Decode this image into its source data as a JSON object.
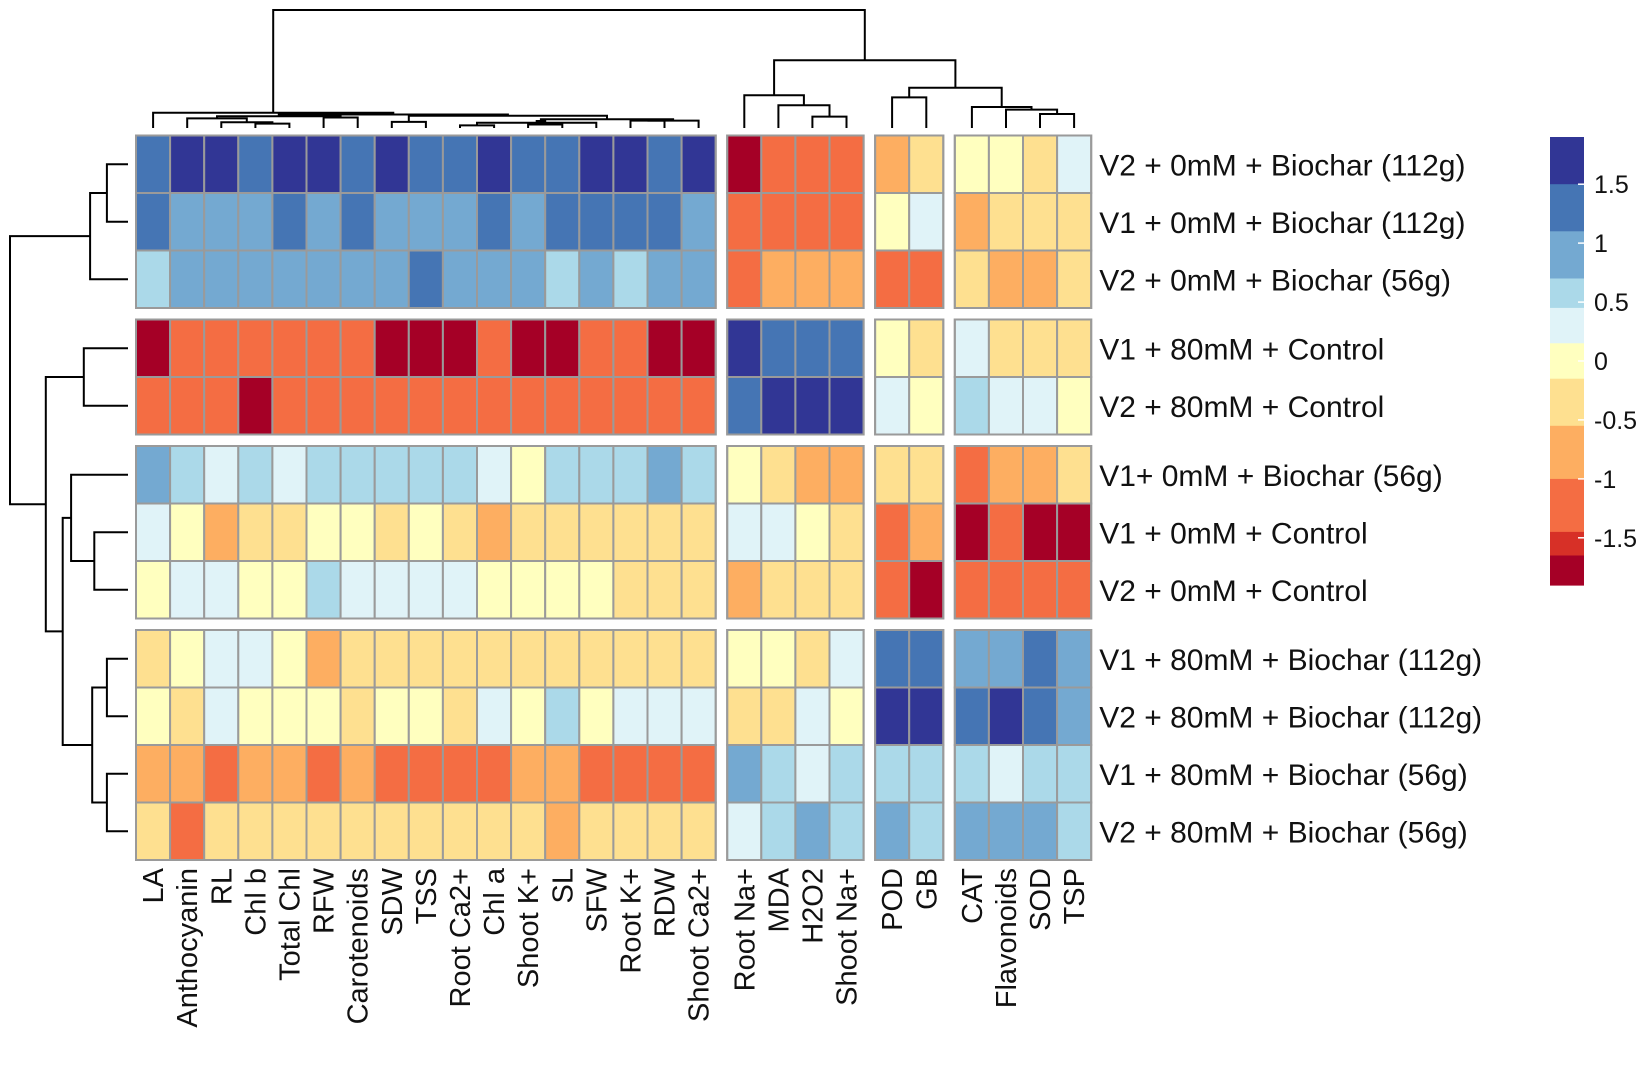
{
  "chart_data": {
    "type": "heatmap",
    "title": "",
    "columns": [
      "LA",
      "Anthocyanin",
      "RL",
      "Chl b",
      "Total Chl",
      "RFW",
      "Carotenoids",
      "SDW",
      "TSS",
      "Root Ca2+",
      "Chl a",
      "Shoot K+",
      "SL",
      "SFW",
      "Root K+",
      "RDW",
      "Shoot Ca2+",
      "Root Na+",
      "MDA",
      "H2O2",
      "Shoot Na+",
      "POD",
      "GB",
      "CAT",
      "Flavonoids",
      "SOD",
      "TSP"
    ],
    "rows": [
      "V2 + 0mM + Biochar (112g)",
      "V1 + 0mM + Biochar (112g)",
      "V2 + 0mM + Biochar (56g)",
      "V1 + 80mM + Control",
      "V2 + 80mM + Control",
      "V1+ 0mM  + Biochar (56g)",
      "V1 + 0mM  + Control",
      "V2 + 0mM + Control",
      "V1 + 80mM + Biochar (112g)",
      "V2 + 80mM + Biochar (112g)",
      "V1 + 80mM + Biochar (56g)",
      "V2 + 80mM + Biochar (56g)"
    ],
    "column_groups": [
      17,
      4,
      2,
      4
    ],
    "row_groups": [
      3,
      2,
      3,
      4
    ],
    "values": [
      [
        1.3,
        1.8,
        1.8,
        1.3,
        1.8,
        1.8,
        1.3,
        1.8,
        1.3,
        1.3,
        1.8,
        1.3,
        1.3,
        1.8,
        1.8,
        1.3,
        1.8,
        -1.8,
        -1.3,
        -1.3,
        -1.3,
        -0.8,
        -0.3,
        0.0,
        0.0,
        -0.3,
        0.3
      ],
      [
        1.3,
        0.8,
        0.8,
        0.8,
        1.3,
        0.8,
        1.3,
        0.8,
        0.8,
        0.8,
        1.3,
        0.8,
        1.3,
        1.3,
        1.3,
        1.3,
        0.8,
        -1.2,
        -1.3,
        -1.2,
        -1.2,
        0.0,
        0.3,
        -0.8,
        -0.3,
        -0.3,
        -0.3
      ],
      [
        0.6,
        0.8,
        0.8,
        0.8,
        0.8,
        0.8,
        0.8,
        0.8,
        1.3,
        0.8,
        0.8,
        0.8,
        0.6,
        0.8,
        0.6,
        0.8,
        0.8,
        -1.2,
        -0.8,
        -0.8,
        -0.8,
        -1.2,
        -1.2,
        -0.3,
        -0.8,
        -0.8,
        -0.3
      ],
      [
        -1.8,
        -1.3,
        -1.3,
        -1.3,
        -1.3,
        -1.3,
        -1.3,
        -1.8,
        -1.8,
        -1.8,
        -1.3,
        -1.8,
        -1.8,
        -1.3,
        -1.3,
        -1.8,
        -1.8,
        1.8,
        1.3,
        1.3,
        1.3,
        0.0,
        -0.3,
        0.3,
        -0.3,
        -0.3,
        -0.3
      ],
      [
        -1.3,
        -1.3,
        -1.3,
        -1.8,
        -1.3,
        -1.3,
        -1.3,
        -1.2,
        -1.2,
        -1.2,
        -1.3,
        -1.2,
        -1.3,
        -1.2,
        -1.3,
        -1.2,
        -1.2,
        1.3,
        1.8,
        1.8,
        1.8,
        0.3,
        0.0,
        0.6,
        0.3,
        0.3,
        0.0
      ],
      [
        0.9,
        0.6,
        0.3,
        0.6,
        0.3,
        0.6,
        0.6,
        0.6,
        0.6,
        0.6,
        0.3,
        0.0,
        0.6,
        0.6,
        0.6,
        0.9,
        0.6,
        0.0,
        -0.3,
        -0.8,
        -0.8,
        -0.3,
        -0.3,
        -1.2,
        -0.8,
        -0.8,
        -0.3
      ],
      [
        0.3,
        0.0,
        -0.8,
        -0.3,
        -0.3,
        0.0,
        0.0,
        -0.3,
        0.0,
        -0.3,
        -0.8,
        -0.3,
        -0.3,
        -0.3,
        -0.3,
        -0.3,
        -0.3,
        0.3,
        0.3,
        0.0,
        -0.3,
        -1.2,
        -0.8,
        -1.8,
        -1.3,
        -1.8,
        -1.8
      ],
      [
        0.0,
        0.3,
        0.3,
        0.0,
        0.0,
        0.6,
        0.3,
        0.3,
        0.3,
        0.3,
        0.0,
        0.0,
        0.0,
        0.0,
        -0.3,
        -0.3,
        -0.3,
        -0.8,
        -0.3,
        -0.3,
        -0.3,
        -1.3,
        -1.8,
        -1.2,
        -1.3,
        -1.3,
        -1.3
      ],
      [
        -0.3,
        0.0,
        0.3,
        0.3,
        0.0,
        -0.8,
        -0.3,
        -0.3,
        -0.3,
        -0.3,
        -0.3,
        -0.3,
        -0.3,
        -0.3,
        -0.3,
        -0.3,
        -0.3,
        0.0,
        0.0,
        -0.3,
        0.3,
        1.3,
        1.3,
        0.9,
        0.9,
        1.3,
        0.9
      ],
      [
        0.0,
        -0.3,
        0.3,
        0.0,
        0.0,
        0.0,
        -0.3,
        0.0,
        0.0,
        -0.3,
        0.3,
        0.0,
        0.6,
        0.0,
        0.3,
        0.3,
        0.3,
        -0.3,
        -0.3,
        0.3,
        0.0,
        1.8,
        1.8,
        1.3,
        1.8,
        1.3,
        0.9
      ],
      [
        -0.8,
        -0.8,
        -1.2,
        -0.8,
        -0.8,
        -1.2,
        -0.8,
        -1.2,
        -1.2,
        -1.2,
        -1.2,
        -0.8,
        -0.8,
        -1.2,
        -1.2,
        -1.2,
        -1.2,
        0.9,
        0.6,
        0.3,
        0.6,
        0.6,
        0.6,
        0.6,
        0.3,
        0.6,
        0.6
      ],
      [
        -0.3,
        -1.2,
        -0.3,
        -0.3,
        -0.3,
        -0.3,
        -0.3,
        -0.3,
        -0.3,
        -0.3,
        -0.3,
        -0.3,
        -0.8,
        -0.3,
        -0.3,
        -0.3,
        -0.3,
        0.3,
        0.6,
        0.9,
        0.6,
        0.9,
        0.6,
        0.9,
        0.9,
        0.9,
        0.6
      ]
    ],
    "legend": {
      "position": "right",
      "range": [
        -1.9,
        1.9
      ],
      "ticks": [
        {
          "value": 1.5,
          "label": "1.5"
        },
        {
          "value": 1.0,
          "label": "1"
        },
        {
          "value": 0.5,
          "label": "0.5"
        },
        {
          "value": 0.0,
          "label": "0"
        },
        {
          "value": -0.5,
          "label": "-0.5"
        },
        {
          "value": -1.0,
          "label": "-1"
        },
        {
          "value": -1.5,
          "label": "-1.5"
        }
      ],
      "bins": [
        {
          "min": 1.5,
          "max": 1.9,
          "color": "#313695"
        },
        {
          "min": 1.1,
          "max": 1.5,
          "color": "#4575b4"
        },
        {
          "min": 0.7,
          "max": 1.1,
          "color": "#74a9d1"
        },
        {
          "min": 0.45,
          "max": 0.7,
          "color": "#abd9e9"
        },
        {
          "min": 0.15,
          "max": 0.45,
          "color": "#e0f3f8"
        },
        {
          "min": -0.15,
          "max": 0.15,
          "color": "#ffffbf"
        },
        {
          "min": -0.55,
          "max": -0.15,
          "color": "#fee090"
        },
        {
          "min": -1.0,
          "max": -0.55,
          "color": "#fdae61"
        },
        {
          "min": -1.45,
          "max": -1.0,
          "color": "#f46d43"
        },
        {
          "min": -1.65,
          "max": -1.45,
          "color": "#d73027"
        },
        {
          "min": -1.9,
          "max": -1.65,
          "color": "#a50026"
        }
      ]
    },
    "dendrograms": {
      "columns": {
        "leaves": 27,
        "merges": [
          [
            9,
            10,
            0.06
          ],
          [
            11,
            12,
            0.08
          ],
          [
            3,
            4,
            0.1
          ],
          [
            27,
            13,
            0.12
          ],
          [
            2,
            29,
            0.13
          ],
          [
            7,
            8,
            0.14
          ],
          [
            28,
            30,
            0.16
          ],
          [
            14,
            15,
            0.17
          ],
          [
            16,
            34,
            0.17
          ],
          [
            33,
            35,
            0.2
          ],
          [
            1,
            31,
            0.22
          ],
          [
            5,
            6,
            0.24
          ],
          [
            37,
            38,
            0.27
          ],
          [
            36,
            32,
            0.28
          ],
          [
            39,
            40,
            0.31
          ],
          [
            0,
            41,
            0.35
          ],
          [
            19,
            20,
            0.26
          ],
          [
            18,
            43,
            0.52
          ],
          [
            17,
            44,
            0.75
          ],
          [
            21,
            22,
            0.7
          ],
          [
            25,
            26,
            0.32
          ],
          [
            24,
            47,
            0.42
          ],
          [
            23,
            48,
            0.48
          ],
          [
            46,
            49,
            0.92
          ],
          [
            45,
            50,
            1.55
          ],
          [
            42,
            51,
            2.7
          ]
        ]
      },
      "rows": {
        "leaves": 12,
        "merges": [
          [
            0,
            1,
            0.5
          ],
          [
            12,
            2,
            0.9
          ],
          [
            3,
            4,
            1.05
          ],
          [
            6,
            7,
            0.8
          ],
          [
            5,
            15,
            1.35
          ],
          [
            8,
            9,
            0.5
          ],
          [
            10,
            11,
            0.5
          ],
          [
            17,
            18,
            0.85
          ],
          [
            16,
            19,
            1.55
          ],
          [
            14,
            20,
            1.95
          ],
          [
            13,
            21,
            2.8
          ]
        ]
      }
    }
  }
}
